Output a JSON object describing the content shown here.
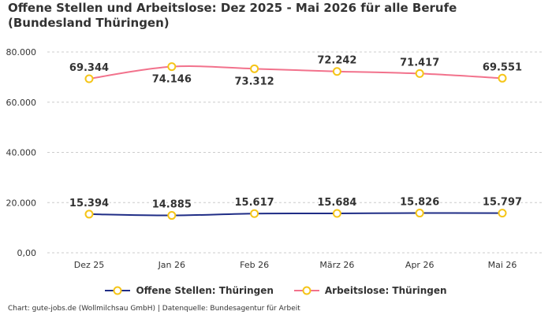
{
  "title": "Offene Stellen und Arbeitslose: Dez 2025 - Mai 2026 für alle Berufe (Bundesland Thüringen)",
  "footer": "Chart: gute-jobs.de (Wollmilchsau GmbH) | Datenquelle: Bundesagentur für Arbeit",
  "colors": {
    "offene_stellen": "#1f2d86",
    "arbeitslose": "#f2728c",
    "marker_stroke": "#f5c518",
    "marker_fill": "#ffffff",
    "grid": "#cccccc",
    "text": "#333333"
  },
  "chart_data": {
    "type": "line",
    "categories": [
      "Dez 25",
      "Jan 26",
      "Feb 26",
      "März 26",
      "Apr 26",
      "Mai 26"
    ],
    "ylim": [
      0,
      80000
    ],
    "yticks": [
      "0,00",
      "20.000",
      "40.000",
      "60.000",
      "80.000"
    ],
    "ytick_values": [
      0,
      20000,
      40000,
      60000,
      80000
    ],
    "grid": true,
    "legend_position": "bottom",
    "series": [
      {
        "name": "Offene Stellen: Thüringen",
        "values": [
          15394,
          14885,
          15617,
          15684,
          15826,
          15797
        ],
        "labels": [
          "15.394",
          "14.885",
          "15.617",
          "15.684",
          "15.826",
          "15.797"
        ]
      },
      {
        "name": "Arbeitslose: Thüringen",
        "values": [
          69344,
          74146,
          73312,
          72242,
          71417,
          69551
        ],
        "labels": [
          "69.344",
          "74.146",
          "73.312",
          "72.242",
          "71.417",
          "69.551"
        ]
      }
    ]
  }
}
